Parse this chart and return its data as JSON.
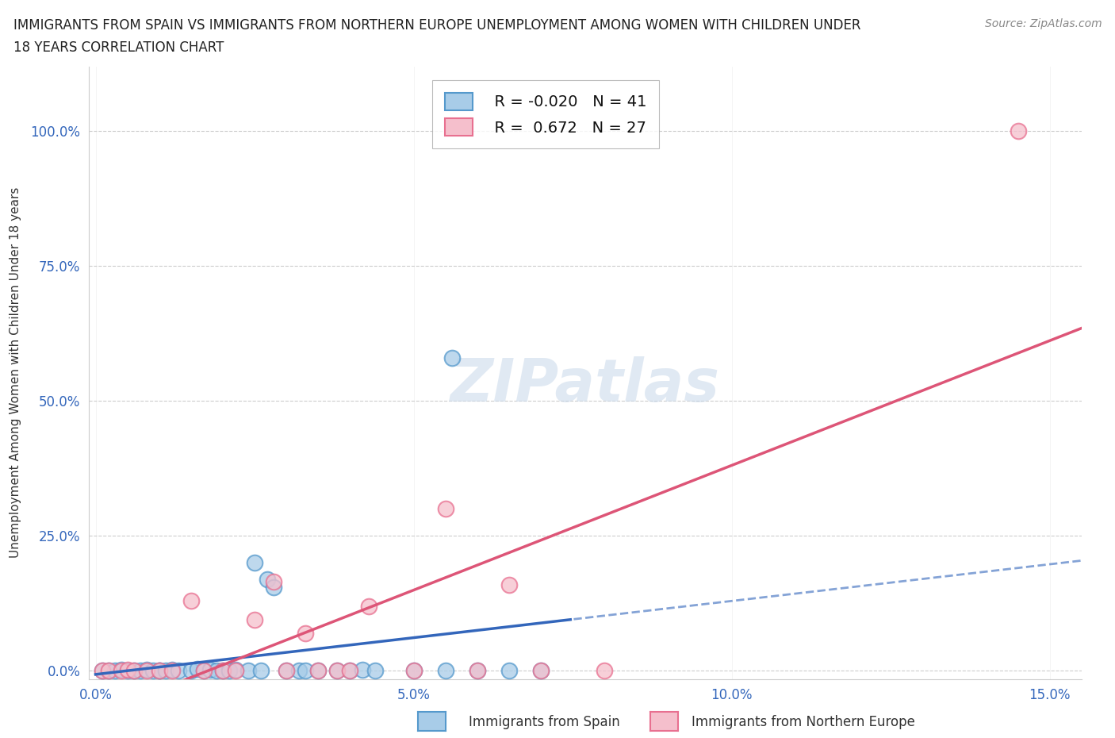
{
  "title_line1": "IMMIGRANTS FROM SPAIN VS IMMIGRANTS FROM NORTHERN EUROPE UNEMPLOYMENT AMONG WOMEN WITH CHILDREN UNDER",
  "title_line2": "18 YEARS CORRELATION CHART",
  "source": "Source: ZipAtlas.com",
  "ylabel": "Unemployment Among Women with Children Under 18 years",
  "xlim": [
    -0.001,
    0.155
  ],
  "ylim": [
    -0.015,
    1.12
  ],
  "xticks": [
    0.0,
    0.05,
    0.1,
    0.15
  ],
  "xtick_labels": [
    "0.0%",
    "5.0%",
    "10.0%",
    "15.0%"
  ],
  "yticks": [
    0.0,
    0.25,
    0.5,
    0.75,
    1.0
  ],
  "ytick_labels": [
    "0.0%",
    "25.0%",
    "50.0%",
    "75.0%",
    "100.0%"
  ],
  "watermark": "ZIPatlas",
  "legend_r1": "R = -0.020",
  "legend_n1": "N = 41",
  "legend_r2": "R =  0.672",
  "legend_n2": "N = 27",
  "color_spain": "#a8cce8",
  "color_northern": "#f5bfcc",
  "color_spain_edge": "#5599cc",
  "color_northern_edge": "#e87090",
  "color_spain_line": "#3366bb",
  "color_northern_line": "#dd5577",
  "background_color": "#ffffff",
  "grid_color": "#cccccc",
  "spain_x": [
    0.001,
    0.002,
    0.003,
    0.004,
    0.005,
    0.006,
    0.007,
    0.008,
    0.009,
    0.01,
    0.01,
    0.011,
    0.012,
    0.013,
    0.015,
    0.016,
    0.017,
    0.018,
    0.019,
    0.02,
    0.021,
    0.022,
    0.024,
    0.025,
    0.026,
    0.027,
    0.028,
    0.03,
    0.032,
    0.033,
    0.035,
    0.038,
    0.04,
    0.042,
    0.044,
    0.05,
    0.055,
    0.056,
    0.06,
    0.065,
    0.07
  ],
  "spain_y": [
    0.0,
    0.001,
    0.0,
    0.002,
    0.0,
    0.001,
    0.0,
    0.002,
    0.001,
    0.0,
    0.001,
    0.0,
    0.002,
    0.001,
    0.0,
    0.003,
    0.001,
    0.002,
    0.0,
    0.001,
    0.0,
    0.002,
    0.001,
    0.2,
    0.0,
    0.17,
    0.155,
    0.0,
    0.001,
    0.0,
    0.0,
    0.001,
    0.0,
    0.002,
    0.0,
    0.001,
    0.0,
    0.58,
    0.0,
    0.001,
    0.0
  ],
  "northern_x": [
    0.001,
    0.002,
    0.004,
    0.005,
    0.006,
    0.008,
    0.01,
    0.012,
    0.015,
    0.017,
    0.02,
    0.022,
    0.025,
    0.028,
    0.03,
    0.033,
    0.035,
    0.038,
    0.04,
    0.043,
    0.05,
    0.055,
    0.06,
    0.065,
    0.07,
    0.08,
    0.145
  ],
  "northern_y": [
    0.0,
    0.001,
    0.0,
    0.002,
    0.0,
    0.001,
    0.0,
    0.001,
    0.13,
    0.0,
    0.001,
    0.0,
    0.095,
    0.165,
    0.0,
    0.07,
    0.001,
    0.0,
    0.001,
    0.12,
    0.0,
    0.3,
    0.0,
    0.16,
    0.0,
    0.001,
    1.0
  ],
  "blue_line_solid_end": 0.075,
  "blue_line_dashed_start": 0.075,
  "blue_line_end": 0.155
}
